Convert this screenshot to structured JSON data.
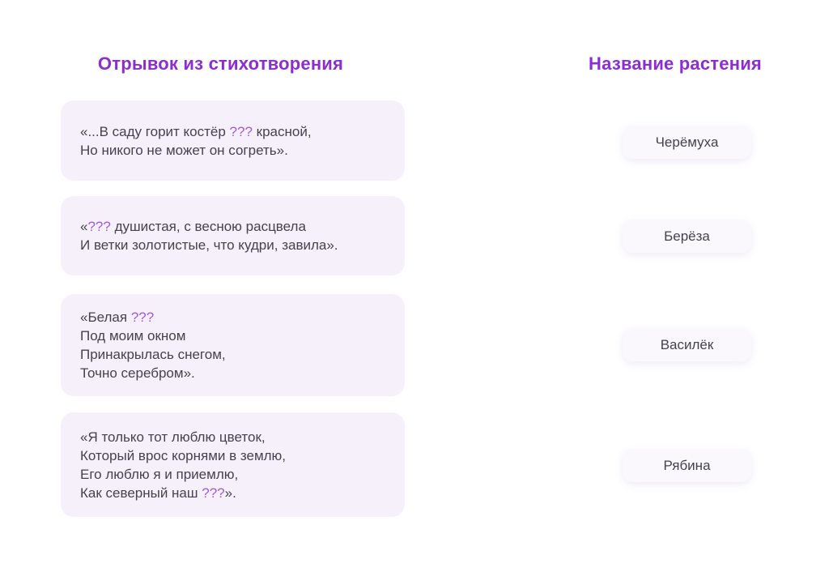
{
  "header": {
    "left_title": "Отрывок из стихотворения",
    "right_title": "Название растения"
  },
  "colors": {
    "accent": "#8c2dd2",
    "placeholder": "#a05ce0",
    "poem_card_bg": "#f6f0fb",
    "answer_card_bg": "#faf8fd",
    "body_text": "#46424d",
    "page_bg": "#ffffff"
  },
  "placeholder_token": "???",
  "poem_cards": [
    {
      "lines": [
        "«...В саду горит костёр ??? красной,",
        "Но никого не может он согреть»."
      ]
    },
    {
      "lines": [
        "«??? душистая, с весною расцвела",
        "И ветки золотистые, что кудри, завила»."
      ]
    },
    {
      "lines": [
        "«Белая ???",
        "Под моим окном",
        "Принакрылась снегом,",
        "Точно серебром»."
      ]
    },
    {
      "lines": [
        "«Я только тот люблю цветок,",
        "Который врос корнями в землю,",
        "Его люблю я и приемлю,",
        "Как северный наш ???»."
      ]
    }
  ],
  "answer_cards": [
    {
      "label": "Черёмуха"
    },
    {
      "label": "Берёза"
    },
    {
      "label": "Василёк"
    },
    {
      "label": "Рябина"
    }
  ]
}
